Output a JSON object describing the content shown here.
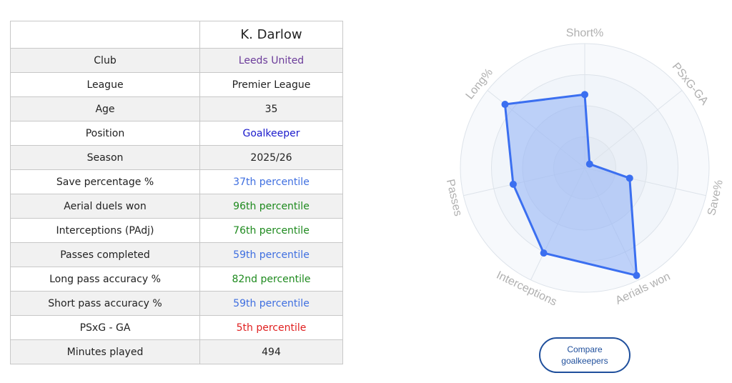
{
  "player": {
    "name": "K. Darlow"
  },
  "rows": [
    {
      "label": "Club",
      "value": "Leeds United",
      "color": "#6b3b9a"
    },
    {
      "label": "League",
      "value": "Premier League",
      "color": "#222222"
    },
    {
      "label": "Age",
      "value": "35",
      "color": "#222222"
    },
    {
      "label": "Position",
      "value": "Goalkeeper",
      "color": "#1a1acc"
    },
    {
      "label": "Season",
      "value": "2025/26",
      "color": "#222222"
    },
    {
      "label": "Save percentage %",
      "value": "37th percentile",
      "color": "#3f6fe0"
    },
    {
      "label": "Aerial duels won",
      "value": "96th percentile",
      "color": "#1e8a1e"
    },
    {
      "label": "Interceptions (PAdj)",
      "value": "76th percentile",
      "color": "#1e8a1e"
    },
    {
      "label": "Passes completed",
      "value": "59th percentile",
      "color": "#3f6fe0"
    },
    {
      "label": "Long pass accuracy %",
      "value": "82nd percentile",
      "color": "#1e8a1e"
    },
    {
      "label": "Short pass accuracy %",
      "value": "59th percentile",
      "color": "#3f6fe0"
    },
    {
      "label": "PSxG - GA",
      "value": "5th percentile",
      "color": "#e02020"
    },
    {
      "label": "Minutes played",
      "value": "494",
      "color": "#222222"
    }
  ],
  "chart_data": {
    "type": "radar",
    "categories": [
      "Short%",
      "PSxG-GA",
      "Save%",
      "Aerials won",
      "Interceptions",
      "Passes",
      "Long%"
    ],
    "values": [
      59,
      5,
      37,
      96,
      76,
      59,
      82
    ],
    "range": [
      0,
      100
    ],
    "colors": {
      "line": "#3b6ff0",
      "fill": "#8fb0f5",
      "point": "#3b6ff0",
      "grid": "#dde3ea",
      "label": "#b0b0b0"
    }
  },
  "compare_button": {
    "label": "Compare goalkeepers"
  }
}
